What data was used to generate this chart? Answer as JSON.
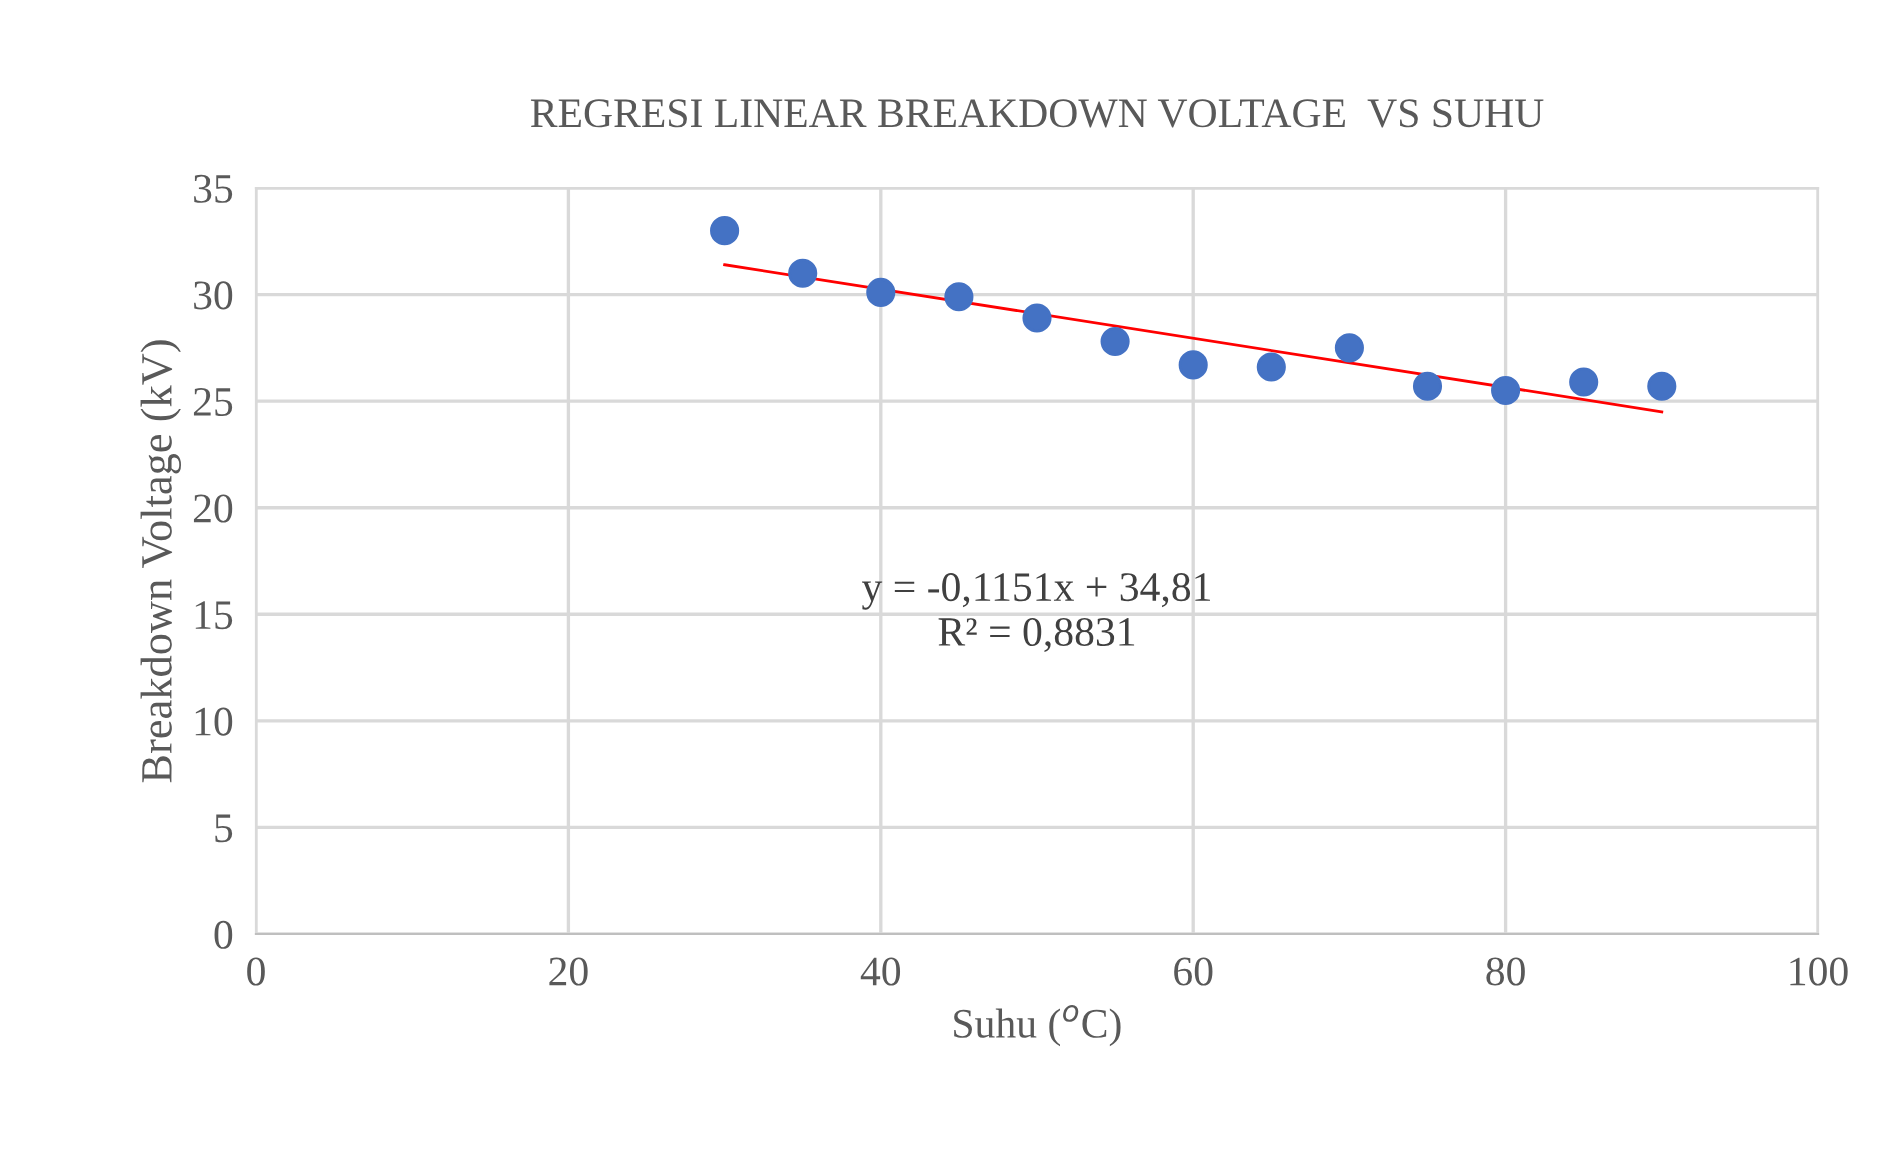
{
  "chart_data": {
    "type": "scatter",
    "title": "REGRESI LINEAR BREAKDOWN VOLTAGE  VS SUHU",
    "xlabel": "Suhu ($^{o}$C)",
    "ylabel": "Breakdown Voltage (kV)",
    "x": [
      30,
      35,
      40,
      45,
      50,
      55,
      60,
      65,
      70,
      75,
      80,
      85,
      90
    ],
    "series": [
      {
        "color": "#4472c4",
        "marker": "circle",
        "values": [
          33.0,
          31.0,
          30.1,
          29.9,
          28.9,
          27.8,
          26.7,
          26.6,
          27.5,
          25.7,
          25.5,
          25.9,
          25.7
        ]
      },
      {
        "type": "line",
        "color": "#ff0000",
        "x": [
          30,
          90
        ],
        "values": [
          31.4,
          24.5
        ],
        "line_style": "solid"
      }
    ],
    "annotations": [
      "y = -0,1151x + 34,81",
      "R² = 0,8831"
    ],
    "xlim": [
      0,
      100
    ],
    "xticks": [
      0,
      20,
      40,
      60,
      80,
      100
    ],
    "ylim": [
      0,
      35
    ],
    "yticks": [
      0,
      5,
      10,
      15,
      20,
      25,
      30,
      35
    ],
    "grid": true,
    "legend": false
  }
}
